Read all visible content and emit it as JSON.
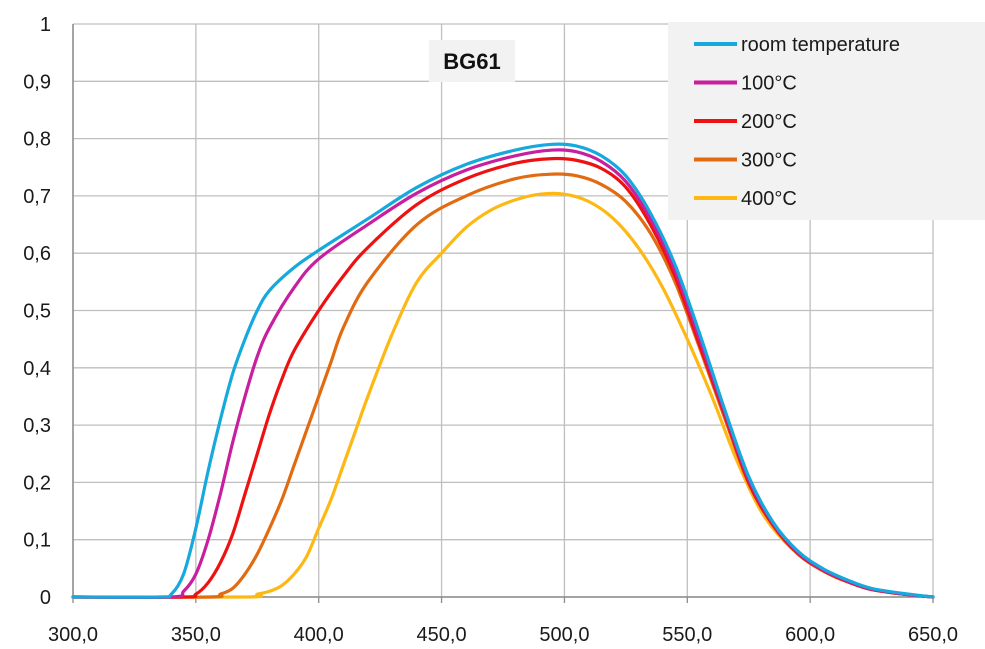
{
  "chart_data": {
    "type": "line",
    "title": "BG61",
    "xlabel": "",
    "ylabel": "",
    "xlim": [
      300,
      650
    ],
    "ylim": [
      0,
      1
    ],
    "grid": true,
    "legend_position": "top-right",
    "x_ticks": [
      "300,0",
      "350,0",
      "400,0",
      "450,0",
      "500,0",
      "550,0",
      "600,0",
      "650,0"
    ],
    "y_ticks": [
      "0",
      "0,1",
      "0,2",
      "0,3",
      "0,4",
      "0,5",
      "0,6",
      "0,7",
      "0,8",
      "0,9",
      "1"
    ],
    "x_tick_values": [
      300,
      350,
      400,
      450,
      500,
      550,
      600,
      650
    ],
    "y_tick_values": [
      0,
      0.1,
      0.2,
      0.3,
      0.4,
      0.5,
      0.6,
      0.7,
      0.8,
      0.9,
      1
    ],
    "series": [
      {
        "name": "room temperature",
        "color": "#17a9dd",
        "points": [
          [
            300,
            0
          ],
          [
            335,
            0
          ],
          [
            340,
            0.005
          ],
          [
            345,
            0.04
          ],
          [
            350,
            0.12
          ],
          [
            355,
            0.22
          ],
          [
            360,
            0.31
          ],
          [
            365,
            0.39
          ],
          [
            370,
            0.45
          ],
          [
            375,
            0.5
          ],
          [
            380,
            0.535
          ],
          [
            390,
            0.575
          ],
          [
            400,
            0.605
          ],
          [
            420,
            0.66
          ],
          [
            440,
            0.715
          ],
          [
            460,
            0.755
          ],
          [
            480,
            0.78
          ],
          [
            495,
            0.79
          ],
          [
            505,
            0.787
          ],
          [
            515,
            0.77
          ],
          [
            525,
            0.735
          ],
          [
            535,
            0.67
          ],
          [
            545,
            0.58
          ],
          [
            555,
            0.46
          ],
          [
            565,
            0.33
          ],
          [
            575,
            0.21
          ],
          [
            585,
            0.13
          ],
          [
            595,
            0.08
          ],
          [
            605,
            0.05
          ],
          [
            615,
            0.03
          ],
          [
            625,
            0.015
          ],
          [
            640,
            0.005
          ],
          [
            650,
            0
          ]
        ]
      },
      {
        "name": "100°C",
        "color": "#c71f9e",
        "points": [
          [
            300,
            0
          ],
          [
            340,
            0
          ],
          [
            345,
            0.01
          ],
          [
            350,
            0.04
          ],
          [
            355,
            0.1
          ],
          [
            360,
            0.18
          ],
          [
            365,
            0.27
          ],
          [
            370,
            0.35
          ],
          [
            375,
            0.42
          ],
          [
            380,
            0.47
          ],
          [
            390,
            0.54
          ],
          [
            400,
            0.59
          ],
          [
            420,
            0.65
          ],
          [
            440,
            0.705
          ],
          [
            460,
            0.745
          ],
          [
            480,
            0.77
          ],
          [
            495,
            0.78
          ],
          [
            505,
            0.777
          ],
          [
            515,
            0.76
          ],
          [
            525,
            0.725
          ],
          [
            535,
            0.66
          ],
          [
            545,
            0.57
          ],
          [
            555,
            0.45
          ],
          [
            565,
            0.325
          ],
          [
            575,
            0.205
          ],
          [
            585,
            0.128
          ],
          [
            595,
            0.078
          ],
          [
            605,
            0.048
          ],
          [
            615,
            0.028
          ],
          [
            625,
            0.014
          ],
          [
            640,
            0.004
          ],
          [
            650,
            0
          ]
        ]
      },
      {
        "name": "200°C",
        "color": "#ee1111",
        "points": [
          [
            300,
            0
          ],
          [
            345,
            0
          ],
          [
            350,
            0.005
          ],
          [
            355,
            0.025
          ],
          [
            360,
            0.06
          ],
          [
            365,
            0.11
          ],
          [
            370,
            0.18
          ],
          [
            375,
            0.25
          ],
          [
            380,
            0.32
          ],
          [
            385,
            0.38
          ],
          [
            390,
            0.43
          ],
          [
            400,
            0.5
          ],
          [
            410,
            0.56
          ],
          [
            420,
            0.61
          ],
          [
            440,
            0.685
          ],
          [
            460,
            0.73
          ],
          [
            480,
            0.757
          ],
          [
            495,
            0.765
          ],
          [
            505,
            0.762
          ],
          [
            515,
            0.748
          ],
          [
            525,
            0.715
          ],
          [
            535,
            0.65
          ],
          [
            545,
            0.56
          ],
          [
            555,
            0.44
          ],
          [
            565,
            0.32
          ],
          [
            575,
            0.2
          ],
          [
            585,
            0.125
          ],
          [
            595,
            0.076
          ],
          [
            605,
            0.047
          ],
          [
            615,
            0.027
          ],
          [
            625,
            0.013
          ],
          [
            640,
            0.004
          ],
          [
            650,
            0
          ]
        ]
      },
      {
        "name": "300°C",
        "color": "#e26a10",
        "points": [
          [
            300,
            0
          ],
          [
            355,
            0
          ],
          [
            360,
            0.005
          ],
          [
            365,
            0.015
          ],
          [
            370,
            0.04
          ],
          [
            375,
            0.075
          ],
          [
            380,
            0.12
          ],
          [
            385,
            0.17
          ],
          [
            390,
            0.23
          ],
          [
            395,
            0.29
          ],
          [
            400,
            0.35
          ],
          [
            405,
            0.41
          ],
          [
            410,
            0.47
          ],
          [
            420,
            0.55
          ],
          [
            440,
            0.65
          ],
          [
            460,
            0.7
          ],
          [
            480,
            0.73
          ],
          [
            495,
            0.738
          ],
          [
            505,
            0.735
          ],
          [
            515,
            0.72
          ],
          [
            525,
            0.69
          ],
          [
            535,
            0.635
          ],
          [
            545,
            0.55
          ],
          [
            555,
            0.435
          ],
          [
            565,
            0.315
          ],
          [
            575,
            0.198
          ],
          [
            585,
            0.124
          ],
          [
            595,
            0.075
          ],
          [
            605,
            0.046
          ],
          [
            615,
            0.027
          ],
          [
            625,
            0.013
          ],
          [
            640,
            0.004
          ],
          [
            650,
            0
          ]
        ]
      },
      {
        "name": "400°C",
        "color": "#fdb813",
        "points": [
          [
            300,
            0
          ],
          [
            370,
            0
          ],
          [
            375,
            0.005
          ],
          [
            380,
            0.01
          ],
          [
            385,
            0.02
          ],
          [
            390,
            0.04
          ],
          [
            395,
            0.07
          ],
          [
            400,
            0.12
          ],
          [
            405,
            0.17
          ],
          [
            410,
            0.23
          ],
          [
            415,
            0.29
          ],
          [
            420,
            0.35
          ],
          [
            430,
            0.46
          ],
          [
            440,
            0.55
          ],
          [
            450,
            0.6
          ],
          [
            460,
            0.645
          ],
          [
            470,
            0.675
          ],
          [
            480,
            0.693
          ],
          [
            490,
            0.703
          ],
          [
            500,
            0.703
          ],
          [
            510,
            0.69
          ],
          [
            520,
            0.66
          ],
          [
            530,
            0.61
          ],
          [
            540,
            0.54
          ],
          [
            550,
            0.45
          ],
          [
            560,
            0.35
          ],
          [
            570,
            0.24
          ],
          [
            580,
            0.15
          ],
          [
            590,
            0.095
          ],
          [
            600,
            0.06
          ],
          [
            610,
            0.035
          ],
          [
            620,
            0.02
          ],
          [
            630,
            0.01
          ],
          [
            640,
            0.004
          ],
          [
            650,
            0
          ]
        ]
      }
    ]
  }
}
